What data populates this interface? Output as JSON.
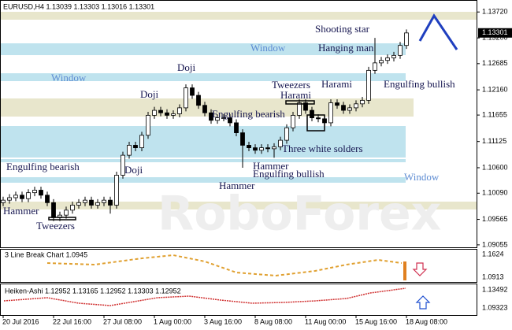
{
  "chart_data": {
    "type": "candlestick",
    "header": "EURUSD,H4  1.13039 1.13303 1.13016 1.13301",
    "open": [
      1.099,
      1.0995,
      1.1,
      1.1005,
      1.0998,
      1.101,
      1.1015,
      1.1005,
      1.099,
      1.096,
      1.0965,
      1.0975,
      1.0985,
      1.099,
      1.0995,
      1.0985,
      1.099,
      1.0995,
      1.0985,
      1.1045,
      1.1085,
      1.1105,
      1.11,
      1.1125,
      1.1165,
      1.1175,
      1.117,
      1.1165,
      1.1168,
      1.118,
      1.122,
      1.1205,
      1.1185,
      1.117,
      1.1155,
      1.116,
      1.116,
      1.115,
      1.113,
      1.1105,
      1.11,
      1.1095,
      1.11,
      1.1098,
      1.1102,
      1.1115,
      1.114,
      1.1165,
      1.119,
      1.1175,
      1.116,
      1.1158,
      1.115,
      1.119,
      1.1185,
      1.1175,
      1.118,
      1.1188,
      1.1195,
      1.1255,
      1.127,
      1.1275,
      1.128,
      1.1285,
      1.1305
    ],
    "high": [
      1.1002,
      1.1007,
      1.1012,
      1.1012,
      1.1017,
      1.1022,
      1.1022,
      1.1012,
      1.0997,
      1.0972,
      1.0982,
      1.0992,
      1.0997,
      1.1002,
      1.1002,
      1.0997,
      1.1002,
      1.1002,
      1.1052,
      1.1092,
      1.1112,
      1.1112,
      1.1132,
      1.1172,
      1.1182,
      1.1182,
      1.1177,
      1.1175,
      1.1187,
      1.1227,
      1.1227,
      1.1212,
      1.1192,
      1.1177,
      1.1167,
      1.1167,
      1.1167,
      1.1157,
      1.1137,
      1.1112,
      1.1107,
      1.1107,
      1.1107,
      1.1109,
      1.1122,
      1.1147,
      1.1172,
      1.1197,
      1.1197,
      1.1182,
      1.1167,
      1.1165,
      1.1197,
      1.1197,
      1.1192,
      1.1187,
      1.1195,
      1.1202,
      1.1262,
      1.132,
      1.1282,
      1.1287,
      1.1292,
      1.1312,
      1.1337
    ],
    "low": [
      1.0983,
      1.0988,
      1.0993,
      1.0991,
      1.0991,
      1.1003,
      1.0998,
      1.0983,
      1.0953,
      1.0953,
      1.0958,
      1.0968,
      1.0978,
      1.0983,
      1.0978,
      1.0978,
      1.0983,
      1.0968,
      1.0978,
      1.1038,
      1.1078,
      1.1093,
      1.1093,
      1.1118,
      1.1158,
      1.1163,
      1.1158,
      1.1158,
      1.1161,
      1.1173,
      1.1198,
      1.1178,
      1.1163,
      1.1148,
      1.1148,
      1.1153,
      1.1143,
      1.1123,
      1.106,
      1.1093,
      1.1088,
      1.1088,
      1.1091,
      1.108,
      1.1095,
      1.1108,
      1.1133,
      1.1158,
      1.1168,
      1.1153,
      1.1151,
      1.1143,
      1.1143,
      1.1178,
      1.1168,
      1.1168,
      1.1173,
      1.1181,
      1.1188,
      1.1248,
      1.1263,
      1.1268,
      1.1273,
      1.1278,
      1.1298
    ],
    "close": [
      1.0995,
      1.1,
      1.1005,
      1.0998,
      1.101,
      1.1015,
      1.1005,
      1.099,
      1.096,
      1.0965,
      1.0975,
      1.0985,
      1.099,
      1.0995,
      1.0985,
      1.099,
      1.0995,
      1.0985,
      1.1045,
      1.1085,
      1.1105,
      1.11,
      1.1125,
      1.1165,
      1.1175,
      1.117,
      1.1165,
      1.1168,
      1.118,
      1.122,
      1.1205,
      1.1185,
      1.117,
      1.1155,
      1.116,
      1.116,
      1.115,
      1.113,
      1.1105,
      1.11,
      1.1095,
      1.11,
      1.1098,
      1.1102,
      1.1115,
      1.114,
      1.1165,
      1.119,
      1.1175,
      1.116,
      1.1158,
      1.115,
      1.119,
      1.1185,
      1.1175,
      1.118,
      1.1188,
      1.1195,
      1.1255,
      1.127,
      1.1275,
      1.128,
      1.1285,
      1.1305,
      1.133
    ],
    "ylim": [
      1.0899,
      1.1396
    ],
    "yticks": [
      {
        "value": 1.1372,
        "label": "1.13720"
      },
      {
        "value": 1.132,
        "label": "1.13200"
      },
      {
        "value": 1.12685,
        "label": "1.12685"
      },
      {
        "value": 1.1216,
        "label": "1.12160"
      },
      {
        "value": 1.11655,
        "label": "1.11655"
      },
      {
        "value": 1.11125,
        "label": "1.11125"
      },
      {
        "value": 1.106,
        "label": "1.10600"
      },
      {
        "value": 1.1009,
        "label": "1.10090"
      },
      {
        "value": 1.09565,
        "label": "1.09565"
      },
      {
        "value": 1.09055,
        "label": "1.09055"
      }
    ],
    "current_price": {
      "value": 1.13301,
      "label": "1.13301"
    },
    "x_labels": [
      "20 Jul 2016",
      "22 Jul 16:00",
      "27 Jul 08:00",
      "1 Aug 00:00",
      "3 Aug 16:00",
      "8 Aug 08:00",
      "11 Aug 00:00",
      "15 Aug 16:00",
      "18 Aug 08:00"
    ],
    "annotations": [
      "Shooting star",
      "Window",
      "Hanging man",
      "Window",
      "Doji",
      "Tweezers",
      "Harami",
      "Harami",
      "Engulfing bullish",
      "Doji",
      "Engulfing bearish",
      "Three white solders",
      "Engulfing bearish",
      "Doji",
      "Hammer",
      "Engulfing bullish",
      "Window",
      "Hammer",
      "Hammer",
      "Tweezers"
    ],
    "indicators": [
      {
        "title": "3 Line Break Chart 1.0945",
        "ticks": [
          "1.1624",
          "1.0913"
        ]
      },
      {
        "title": "Heiken-Ashi 1.12952 1.13165 1.12952 1.13303 1.12952",
        "ticks": [
          "1.13492",
          "1.09323"
        ]
      }
    ]
  }
}
